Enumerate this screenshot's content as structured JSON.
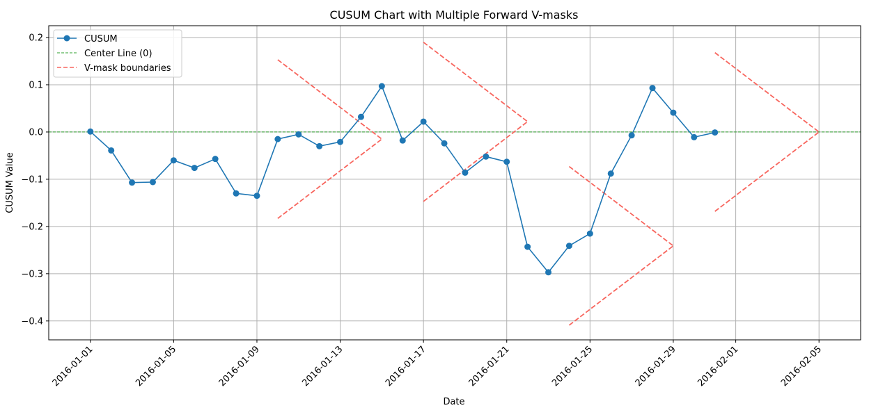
{
  "chart_data": {
    "type": "line",
    "title": "CUSUM Chart with Multiple Forward V-masks",
    "xlabel": "Date",
    "ylabel": "CUSUM Value",
    "x_type": "date",
    "xlim": [
      "2015-12-30",
      "2016-02-07"
    ],
    "ylim": [
      -0.44,
      0.225
    ],
    "x_ticks": [
      "2016-01-01",
      "2016-01-05",
      "2016-01-09",
      "2016-01-13",
      "2016-01-17",
      "2016-01-21",
      "2016-01-25",
      "2016-01-29",
      "2016-02-01",
      "2016-02-05"
    ],
    "y_ticks": [
      0.2,
      0.1,
      0.0,
      -0.1,
      -0.2,
      -0.3,
      -0.4
    ],
    "y_tick_labels": [
      "0.2",
      "0.1",
      "0.0",
      "−0.1",
      "−0.2",
      "−0.3",
      "−0.4"
    ],
    "grid": true,
    "legend_position": "top-left",
    "series": [
      {
        "name": "CUSUM",
        "kind": "line-marker",
        "color": "#1f77b4",
        "x": [
          "2016-01-01",
          "2016-01-02",
          "2016-01-03",
          "2016-01-04",
          "2016-01-05",
          "2016-01-06",
          "2016-01-07",
          "2016-01-08",
          "2016-01-09",
          "2016-01-10",
          "2016-01-11",
          "2016-01-12",
          "2016-01-13",
          "2016-01-14",
          "2016-01-15",
          "2016-01-16",
          "2016-01-17",
          "2016-01-18",
          "2016-01-19",
          "2016-01-20",
          "2016-01-21",
          "2016-01-22",
          "2016-01-23",
          "2016-01-24",
          "2016-01-25",
          "2016-01-26",
          "2016-01-27",
          "2016-01-28",
          "2016-01-29",
          "2016-01-30",
          "2016-01-31"
        ],
        "values": [
          0.001,
          -0.039,
          -0.107,
          -0.106,
          -0.06,
          -0.076,
          -0.057,
          -0.13,
          -0.135,
          -0.015,
          -0.005,
          -0.03,
          -0.021,
          0.032,
          0.097,
          -0.018,
          0.022,
          -0.024,
          -0.086,
          -0.052,
          -0.063,
          -0.243,
          -0.297,
          -0.241,
          -0.215,
          -0.088,
          -0.007,
          0.093,
          0.041,
          -0.011,
          -0.001
        ]
      },
      {
        "name": "Center Line (0)",
        "kind": "hline",
        "color": "#2ca02c",
        "value": 0.0
      },
      {
        "name": "V-mask boundaries",
        "kind": "segments",
        "color": "#f8665e",
        "segments": [
          [
            [
              "2016-01-10",
              0.153
            ],
            [
              "2016-01-15",
              -0.015
            ]
          ],
          [
            [
              "2016-01-10",
              -0.183
            ],
            [
              "2016-01-15",
              -0.015
            ]
          ],
          [
            [
              "2016-01-17",
              0.19
            ],
            [
              "2016-01-22",
              0.022
            ]
          ],
          [
            [
              "2016-01-17",
              -0.147
            ],
            [
              "2016-01-22",
              0.022
            ]
          ],
          [
            [
              "2016-01-24",
              -0.073
            ],
            [
              "2016-01-29",
              -0.241
            ]
          ],
          [
            [
              "2016-01-24",
              -0.409
            ],
            [
              "2016-01-29",
              -0.241
            ]
          ],
          [
            [
              "2016-01-31",
              0.168
            ],
            [
              "2016-02-05",
              0.0
            ]
          ],
          [
            [
              "2016-01-31",
              -0.168
            ],
            [
              "2016-02-05",
              0.0
            ]
          ]
        ]
      }
    ]
  }
}
